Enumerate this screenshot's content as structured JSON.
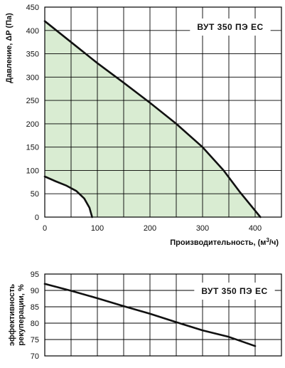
{
  "colors": {
    "fill": "#d9ecd2",
    "line": "#111111",
    "grid": "#000000",
    "background": "#ffffff"
  },
  "chart_data": [
    {
      "type": "line",
      "title": "ВУТ 350 ПЭ ЕС",
      "xlabel": "Производительность, (м³/ч)",
      "ylabel": "Давление, ΔP (Па)",
      "xlim": [
        0,
        450
      ],
      "ylim": [
        0,
        450
      ],
      "xticks": [
        "0",
        "100",
        "200",
        "300",
        "400"
      ],
      "yticks": [
        "0",
        "50",
        "100",
        "150",
        "200",
        "250",
        "300",
        "350",
        "400",
        "450"
      ],
      "grid": true,
      "series": [
        {
          "role": "max",
          "x": [
            0,
            50,
            100,
            150,
            200,
            250,
            300,
            340,
            370,
            410
          ],
          "y": [
            420,
            375,
            330,
            288,
            245,
            200,
            150,
            100,
            55,
            0
          ]
        },
        {
          "role": "min",
          "x": [
            0,
            20,
            40,
            60,
            75,
            85,
            90
          ],
          "y": [
            87,
            77,
            68,
            56,
            40,
            20,
            0
          ]
        }
      ]
    },
    {
      "type": "line",
      "title": "ВУТ 350 ПЭ ЕС",
      "xlabel": "",
      "ylabel": "эффективность рекуперации, %",
      "xlim": [
        0,
        450
      ],
      "ylim": [
        70,
        95
      ],
      "yticks": [
        "70",
        "75",
        "80",
        "85",
        "90",
        "95"
      ],
      "grid": true,
      "series": [
        {
          "x": [
            0,
            50,
            100,
            150,
            200,
            250,
            300,
            350,
            400
          ],
          "y": [
            92,
            89.9,
            87.6,
            85.2,
            82.9,
            80.3,
            77.8,
            75.8,
            73
          ]
        }
      ]
    }
  ]
}
